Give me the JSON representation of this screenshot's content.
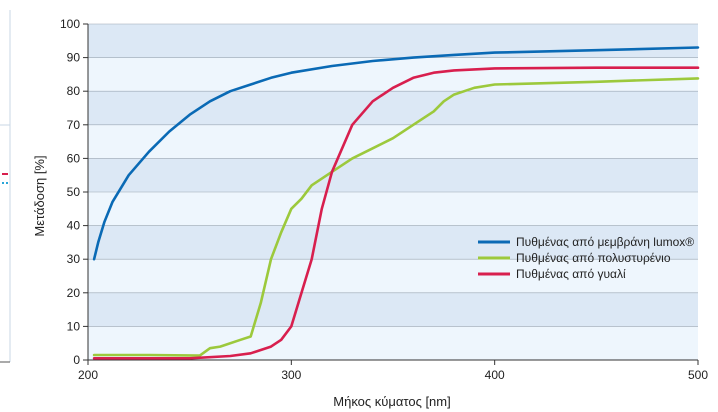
{
  "chart_data": {
    "type": "line",
    "title": "",
    "xlabel": "Μήκος κύματος [nm]",
    "ylabel": "Μετάδοση [%]",
    "xlim": [
      200,
      500
    ],
    "ylim": [
      0,
      100
    ],
    "x_ticks": [
      200,
      300,
      400,
      500
    ],
    "y_ticks": [
      0,
      10,
      20,
      30,
      40,
      50,
      60,
      70,
      80,
      90,
      100
    ],
    "grid": "horizontal bands",
    "band_colors": [
      "#dce8f5",
      "#eef6fd"
    ],
    "legend_position": "right, mid-lower",
    "series": [
      {
        "name": "Πυθμένας από μεμβράνη lumox®",
        "color": "#0a6ab5",
        "points": [
          [
            203,
            30
          ],
          [
            205,
            35
          ],
          [
            208,
            41
          ],
          [
            212,
            47
          ],
          [
            220,
            55
          ],
          [
            230,
            62
          ],
          [
            240,
            68
          ],
          [
            250,
            73
          ],
          [
            260,
            77
          ],
          [
            270,
            80
          ],
          [
            280,
            82
          ],
          [
            290,
            84
          ],
          [
            300,
            85.5
          ],
          [
            320,
            87.5
          ],
          [
            340,
            89
          ],
          [
            360,
            90
          ],
          [
            380,
            90.8
          ],
          [
            400,
            91.5
          ],
          [
            450,
            92.2
          ],
          [
            500,
            93
          ]
        ]
      },
      {
        "name": "Πυθμένας από πολυστυρένιο",
        "color": "#9cc93c",
        "points": [
          [
            203,
            1.5
          ],
          [
            230,
            1.5
          ],
          [
            255,
            1.3
          ],
          [
            260,
            3.5
          ],
          [
            265,
            4
          ],
          [
            275,
            6
          ],
          [
            280,
            7
          ],
          [
            285,
            17
          ],
          [
            290,
            30
          ],
          [
            295,
            38
          ],
          [
            300,
            45
          ],
          [
            305,
            48
          ],
          [
            310,
            52
          ],
          [
            320,
            56
          ],
          [
            330,
            60
          ],
          [
            340,
            63
          ],
          [
            350,
            66
          ],
          [
            360,
            70
          ],
          [
            370,
            74
          ],
          [
            375,
            77
          ],
          [
            380,
            79
          ],
          [
            385,
            80
          ],
          [
            390,
            81
          ],
          [
            400,
            82
          ],
          [
            450,
            82.8
          ],
          [
            500,
            83.8
          ]
        ]
      },
      {
        "name": "Πυθμένας από γυαλί",
        "color": "#d81f4e",
        "points": [
          [
            203,
            0.5
          ],
          [
            250,
            0.5
          ],
          [
            270,
            1.2
          ],
          [
            280,
            2
          ],
          [
            290,
            4
          ],
          [
            295,
            6
          ],
          [
            300,
            10
          ],
          [
            305,
            20
          ],
          [
            310,
            30
          ],
          [
            315,
            45
          ],
          [
            320,
            56
          ],
          [
            330,
            70
          ],
          [
            340,
            77
          ],
          [
            350,
            81
          ],
          [
            360,
            84
          ],
          [
            370,
            85.5
          ],
          [
            380,
            86.2
          ],
          [
            400,
            86.8
          ],
          [
            450,
            87
          ],
          [
            500,
            87
          ]
        ]
      }
    ]
  }
}
